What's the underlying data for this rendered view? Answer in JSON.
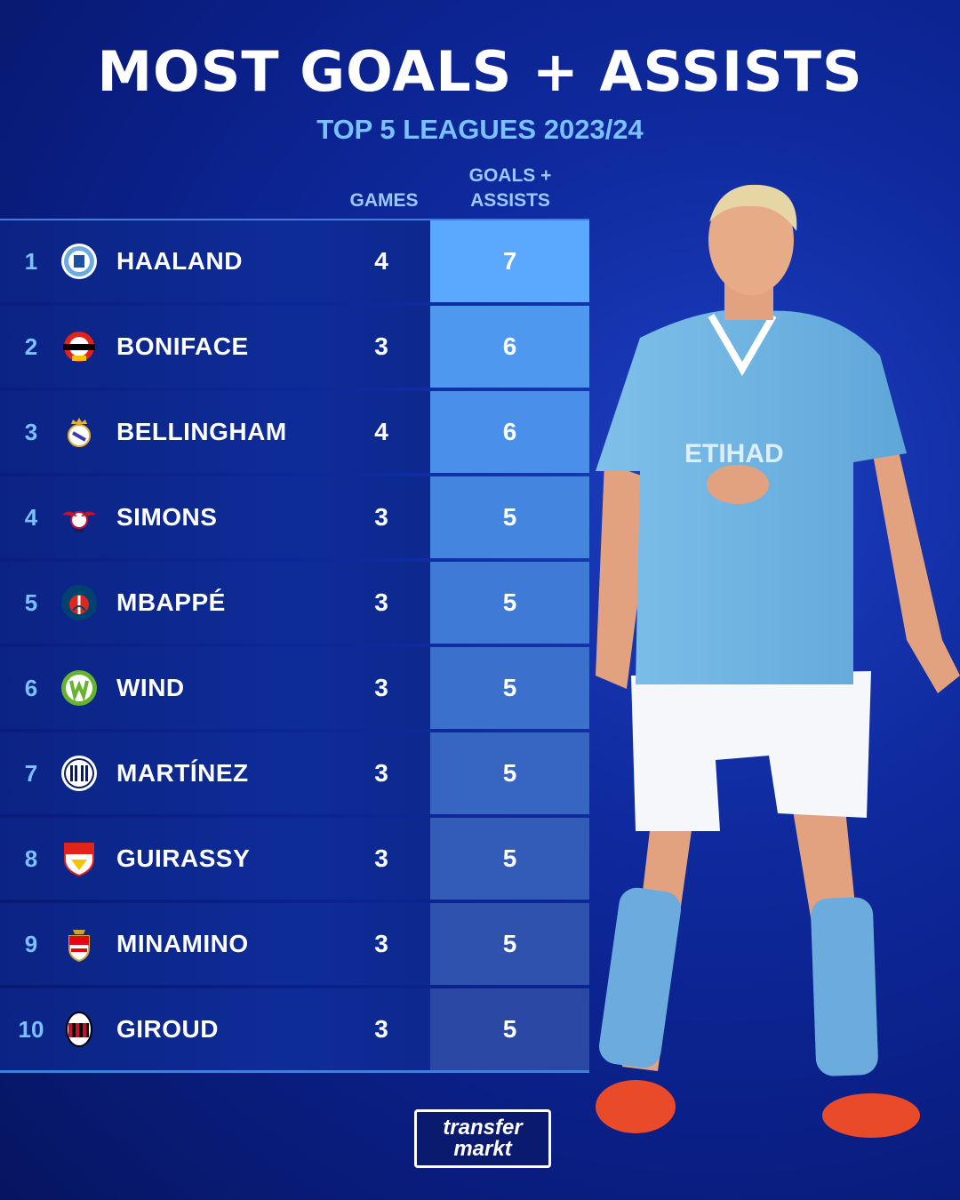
{
  "header": {
    "title": "MOST GOALS + ASSISTS",
    "subtitle": "TOP 5 LEAGUES 2023/24"
  },
  "columns": {
    "games": "GAMES",
    "ga_line1": "GOALS +",
    "ga_line2": "ASSISTS"
  },
  "rows": [
    {
      "rank": "1",
      "name": "HAALAND",
      "games": "4",
      "ga": "7",
      "crest": "man-city-crest",
      "ga_color": "#5aa8ff"
    },
    {
      "rank": "2",
      "name": "BONIFACE",
      "games": "3",
      "ga": "6",
      "crest": "leverkusen-crest",
      "ga_color": "#4e98f0"
    },
    {
      "rank": "3",
      "name": "BELLINGHAM",
      "games": "4",
      "ga": "6",
      "crest": "real-madrid-crest",
      "ga_color": "#4a90ea"
    },
    {
      "rank": "4",
      "name": "SIMONS",
      "games": "3",
      "ga": "5",
      "crest": "leipzig-crest",
      "ga_color": "#4485e0"
    },
    {
      "rank": "5",
      "name": "MBAPPÉ",
      "games": "3",
      "ga": "5",
      "crest": "psg-crest",
      "ga_color": "#3f7ad6"
    },
    {
      "rank": "6",
      "name": "WIND",
      "games": "3",
      "ga": "5",
      "crest": "wolfsburg-crest",
      "ga_color": "#3b70cc"
    },
    {
      "rank": "7",
      "name": "MARTÍNEZ",
      "games": "3",
      "ga": "5",
      "crest": "inter-crest",
      "ga_color": "#3766c2"
    },
    {
      "rank": "8",
      "name": "GUIRASSY",
      "games": "3",
      "ga": "5",
      "crest": "stuttgart-crest",
      "ga_color": "#335cb8"
    },
    {
      "rank": "9",
      "name": "MINAMINO",
      "games": "3",
      "ga": "5",
      "crest": "monaco-crest",
      "ga_color": "#2f52ae"
    },
    {
      "rank": "10",
      "name": "GIROUD",
      "games": "3",
      "ga": "5",
      "crest": "milan-crest",
      "ga_color": "#2b48a4"
    }
  ],
  "logo": {
    "line1": "transfer",
    "line2": "markt"
  },
  "colors": {
    "accent": "#7cc1ff",
    "background": "#0f2a9e"
  }
}
